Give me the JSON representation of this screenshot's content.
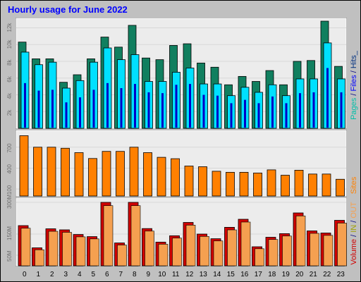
{
  "title": "Hourly usage for June 2022",
  "colors": {
    "background": "#c0c0c0",
    "panel": "#ececec",
    "pages": "#117f5f",
    "files": "#00e0ff",
    "hits": "#00bfa8",
    "visits_shadow": "#0000c8",
    "sites": "#ff8000",
    "kbytes": "#d00000",
    "kbytes_light": "#f5a050",
    "title": "#0000ff"
  },
  "right_labels": {
    "top": [
      {
        "text": "Pages",
        "color": "#00bfa8"
      },
      {
        "text": " / ",
        "color": "#000080"
      },
      {
        "text": "Files",
        "color": "#0000ff"
      },
      {
        "text": " / ",
        "color": "#000080"
      },
      {
        "text": "Hits",
        "color": "#003080"
      },
      {
        "text": "_",
        "color": "#003080"
      }
    ],
    "middle": [
      {
        "text": "Sites",
        "color": "#ff8000"
      }
    ],
    "bottom": [
      {
        "text": "Volume",
        "color": "#d00000"
      },
      {
        "text": " / ",
        "color": "#000080"
      },
      {
        "text": "IN",
        "color": "#a0a000"
      },
      {
        "text": " / ",
        "color": "#000080"
      },
      {
        "text": "OUT",
        "color": "#f5a050"
      }
    ]
  },
  "chart_data": [
    {
      "type": "bar",
      "name": "hits-files-pages",
      "categories": [
        "0",
        "1",
        "2",
        "3",
        "4",
        "5",
        "6",
        "7",
        "8",
        "9",
        "10",
        "11",
        "12",
        "13",
        "14",
        "15",
        "16",
        "17",
        "18",
        "19",
        "20",
        "21",
        "22",
        "23"
      ],
      "ytick_labels": [
        "2k",
        "4k",
        "6k",
        "8k",
        "10k",
        "12k"
      ],
      "ylim": [
        0,
        12800
      ],
      "series": [
        {
          "name": "Hits",
          "values": [
            10300,
            8300,
            8300,
            5500,
            6400,
            8300,
            10900,
            9700,
            12300,
            8400,
            8200,
            9900,
            10100,
            7800,
            7300,
            5200,
            6200,
            5600,
            6900,
            5200,
            8000,
            8100,
            12800,
            7400
          ]
        },
        {
          "name": "Files",
          "values": [
            9100,
            7600,
            7900,
            4800,
            5700,
            7900,
            9600,
            8200,
            8800,
            5600,
            5600,
            6700,
            7200,
            5300,
            5300,
            3900,
            4900,
            4300,
            5200,
            3900,
            5900,
            5900,
            10200,
            5900
          ]
        },
        {
          "name": "Pages",
          "values": [
            5400,
            4500,
            4600,
            3100,
            3700,
            4600,
            5400,
            4800,
            5300,
            4300,
            4200,
            5200,
            5300,
            4000,
            3900,
            3000,
            3400,
            3000,
            3800,
            3000,
            4200,
            4300,
            7200,
            4300
          ]
        }
      ]
    },
    {
      "type": "bar",
      "name": "sites",
      "categories": [
        "0",
        "1",
        "2",
        "3",
        "4",
        "5",
        "6",
        "7",
        "8",
        "9",
        "10",
        "11",
        "12",
        "13",
        "14",
        "15",
        "16",
        "17",
        "18",
        "19",
        "20",
        "21",
        "22",
        "23"
      ],
      "ytick_labels": [
        "100",
        "400",
        "700"
      ],
      "ylim": [
        0,
        900
      ],
      "series": [
        {
          "name": "Sites",
          "values": [
            865,
            700,
            700,
            685,
            622,
            538,
            640,
            640,
            700,
            622,
            555,
            535,
            430,
            420,
            355,
            340,
            340,
            330,
            375,
            298,
            370,
            315,
            315,
            240
          ]
        }
      ]
    },
    {
      "type": "bar",
      "name": "volume",
      "categories": [
        "0",
        "1",
        "2",
        "3",
        "4",
        "5",
        "6",
        "7",
        "8",
        "9",
        "10",
        "11",
        "12",
        "13",
        "14",
        "15",
        "16",
        "17",
        "18",
        "19",
        "20",
        "21",
        "22",
        "23"
      ],
      "ytick_labels": [
        "50M",
        "150M",
        "300M"
      ],
      "ylim": [
        0,
        300
      ],
      "series": [
        {
          "name": "Volume",
          "values": [
            190,
            85,
            175,
            170,
            148,
            138,
            300,
            108,
            300,
            176,
            112,
            142,
            205,
            150,
            128,
            182,
            220,
            90,
            135,
            152,
            250,
            165,
            155,
            215
          ]
        }
      ]
    }
  ]
}
